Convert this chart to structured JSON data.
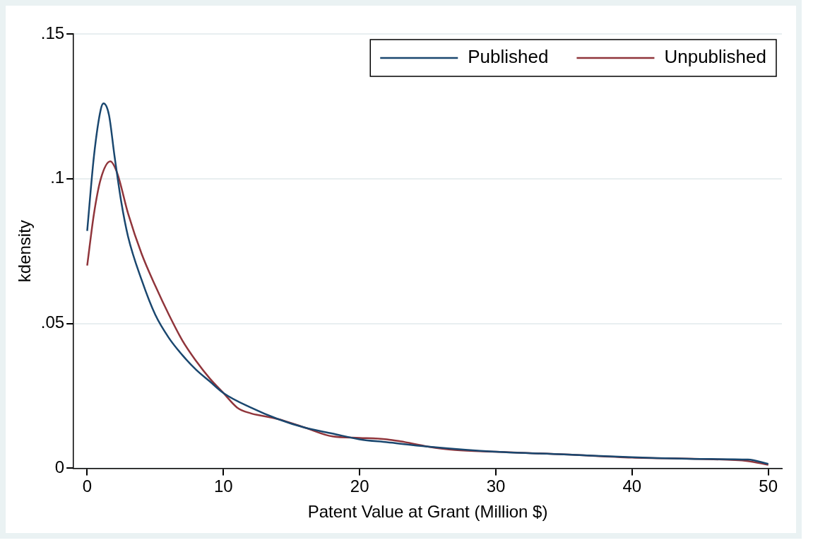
{
  "chart_data": {
    "type": "line",
    "xlabel": "Patent Value at Grant (Million $)",
    "ylabel": "kdensity",
    "xlim": [
      -1,
      51
    ],
    "xticks": [
      0,
      10,
      20,
      30,
      40,
      50
    ],
    "ylim": [
      0,
      0.15
    ],
    "yticks": [
      0,
      {
        "value": 0.05,
        "label": ".05"
      },
      {
        "value": 0.1,
        "label": ".1"
      },
      {
        "value": 0.15,
        "label": ".15"
      }
    ],
    "grid": "y",
    "legend": "top right",
    "marker": "none",
    "line_style": "solid",
    "series": [
      {
        "name": "Published",
        "color": "#1a476f",
        "x": [
          0,
          0.5,
          1,
          1.2,
          1.6,
          2,
          2.5,
          3,
          4,
          5,
          6,
          7,
          8,
          9,
          10,
          12,
          14,
          16,
          18,
          20,
          22,
          25,
          30,
          35,
          40,
          45,
          48.5,
          50
        ],
        "values": [
          0.082,
          0.108,
          0.124,
          0.126,
          0.122,
          0.108,
          0.092,
          0.08,
          0.065,
          0.053,
          0.045,
          0.039,
          0.034,
          0.03,
          0.026,
          0.021,
          0.017,
          0.014,
          0.012,
          0.01,
          0.009,
          0.0075,
          0.0057,
          0.0048,
          0.0038,
          0.0032,
          0.003,
          0.0015
        ]
      },
      {
        "name": "Unpublished",
        "color": "#90353b",
        "x": [
          0,
          0.5,
          1,
          1.7,
          2.2,
          3,
          4,
          5,
          6,
          7,
          8,
          9,
          10,
          11,
          12,
          13,
          14,
          16,
          18,
          20,
          22,
          23,
          25,
          27,
          30,
          35,
          40,
          45,
          48.5,
          50
        ],
        "values": [
          0.07,
          0.088,
          0.1,
          0.106,
          0.102,
          0.088,
          0.074,
          0.063,
          0.053,
          0.044,
          0.037,
          0.031,
          0.026,
          0.021,
          0.019,
          0.018,
          0.017,
          0.014,
          0.011,
          0.0105,
          0.01,
          0.0093,
          0.0075,
          0.0063,
          0.0057,
          0.0048,
          0.0037,
          0.0032,
          0.0025,
          0.0012
        ]
      }
    ]
  }
}
